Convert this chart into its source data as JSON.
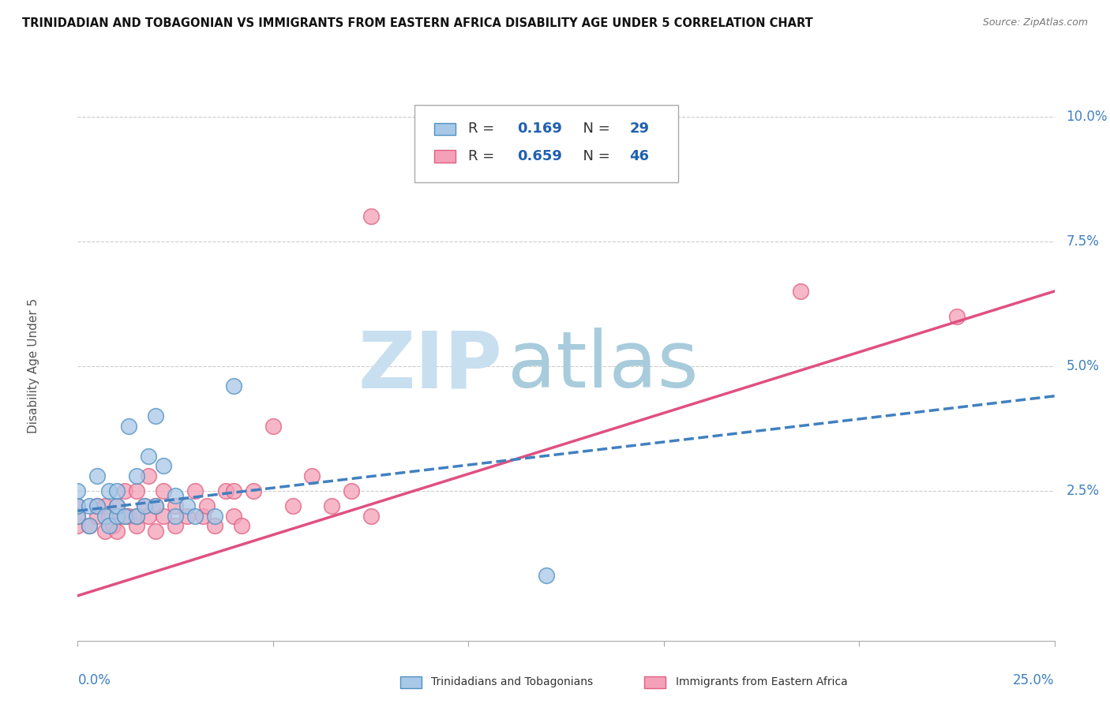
{
  "title": "TRINIDADIAN AND TOBAGONIAN VS IMMIGRANTS FROM EASTERN AFRICA DISABILITY AGE UNDER 5 CORRELATION CHART",
  "source": "Source: ZipAtlas.com",
  "ylabel": "Disability Age Under 5",
  "xmin": 0.0,
  "xmax": 0.25,
  "ymin": -0.005,
  "ymax": 0.105,
  "legend1_R": "0.169",
  "legend1_N": "29",
  "legend2_R": "0.659",
  "legend2_N": "46",
  "color_blue_fill": "#a8c8e8",
  "color_pink_fill": "#f4a0b8",
  "color_blue_edge": "#5090c0",
  "color_pink_edge": "#e06080",
  "color_blue_line": "#4080c0",
  "color_pink_line": "#e05080",
  "ytick_vals": [
    0.0,
    0.025,
    0.05,
    0.075,
    0.1
  ],
  "ytick_labels": [
    "",
    "2.5%",
    "5.0%",
    "7.5%",
    "10.0%"
  ],
  "xtick_vals": [
    0.0,
    0.05,
    0.1,
    0.15,
    0.2,
    0.25
  ],
  "blue_scatter_x": [
    0.0,
    0.0,
    0.0,
    0.003,
    0.003,
    0.005,
    0.005,
    0.007,
    0.008,
    0.008,
    0.01,
    0.01,
    0.01,
    0.012,
    0.013,
    0.015,
    0.015,
    0.017,
    0.018,
    0.02,
    0.02,
    0.022,
    0.025,
    0.025,
    0.028,
    0.03,
    0.035,
    0.04,
    0.12
  ],
  "blue_scatter_y": [
    0.02,
    0.022,
    0.025,
    0.018,
    0.022,
    0.022,
    0.028,
    0.02,
    0.018,
    0.025,
    0.02,
    0.022,
    0.025,
    0.02,
    0.038,
    0.02,
    0.028,
    0.022,
    0.032,
    0.022,
    0.04,
    0.03,
    0.02,
    0.024,
    0.022,
    0.02,
    0.02,
    0.046,
    0.008
  ],
  "pink_scatter_x": [
    0.0,
    0.0,
    0.0,
    0.003,
    0.005,
    0.005,
    0.007,
    0.007,
    0.008,
    0.009,
    0.01,
    0.01,
    0.012,
    0.012,
    0.013,
    0.015,
    0.015,
    0.015,
    0.017,
    0.018,
    0.018,
    0.02,
    0.02,
    0.022,
    0.022,
    0.025,
    0.025,
    0.028,
    0.03,
    0.032,
    0.033,
    0.035,
    0.038,
    0.04,
    0.04,
    0.042,
    0.045,
    0.05,
    0.055,
    0.06,
    0.065,
    0.07,
    0.075,
    0.075,
    0.185,
    0.225
  ],
  "pink_scatter_y": [
    0.018,
    0.02,
    0.022,
    0.018,
    0.02,
    0.022,
    0.017,
    0.022,
    0.02,
    0.018,
    0.017,
    0.022,
    0.02,
    0.025,
    0.02,
    0.018,
    0.02,
    0.025,
    0.022,
    0.02,
    0.028,
    0.017,
    0.022,
    0.02,
    0.025,
    0.018,
    0.022,
    0.02,
    0.025,
    0.02,
    0.022,
    0.018,
    0.025,
    0.02,
    0.025,
    0.018,
    0.025,
    0.038,
    0.022,
    0.028,
    0.022,
    0.025,
    0.08,
    0.02,
    0.065,
    0.06
  ],
  "blue_line_x": [
    0.0,
    0.25
  ],
  "blue_line_y": [
    0.021,
    0.044
  ],
  "pink_line_x": [
    0.0,
    0.25
  ],
  "pink_line_y": [
    0.004,
    0.065
  ],
  "watermark_zip": "ZIP",
  "watermark_atlas": "atlas",
  "grid_color": "#cccccc",
  "bg_color": "#ffffff",
  "tick_color": "#4080c0"
}
